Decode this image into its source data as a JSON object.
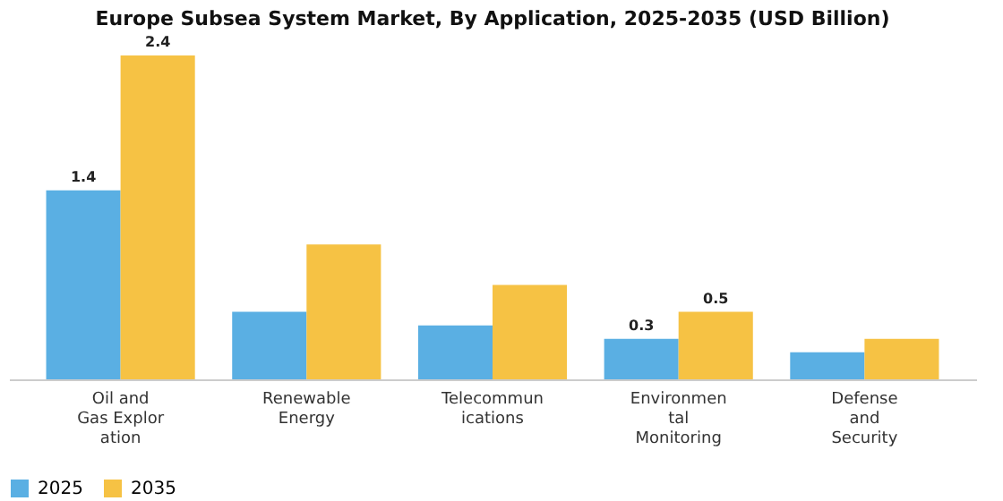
{
  "chart_data": {
    "type": "bar",
    "title": "Europe Subsea System Market, By Application, 2025-2035 (USD Billion)",
    "categories": [
      "Oil and\nGas Explor\nation",
      "Renewable\nEnergy",
      "Telecommun\nications",
      "Environmen\ntal\nMonitoring",
      "Defense\nand\nSecurity"
    ],
    "series": [
      {
        "name": "2025",
        "color": "#5aafe3",
        "values": [
          1.4,
          0.5,
          0.4,
          0.3,
          0.2
        ],
        "value_labels": [
          "1.4",
          null,
          null,
          "0.3",
          null
        ]
      },
      {
        "name": "2035",
        "color": "#f6c244",
        "values": [
          2.4,
          1.0,
          0.7,
          0.5,
          0.3
        ],
        "value_labels": [
          "2.4",
          null,
          null,
          "0.5",
          null
        ]
      }
    ],
    "legend": "bottom",
    "grid": false
  }
}
